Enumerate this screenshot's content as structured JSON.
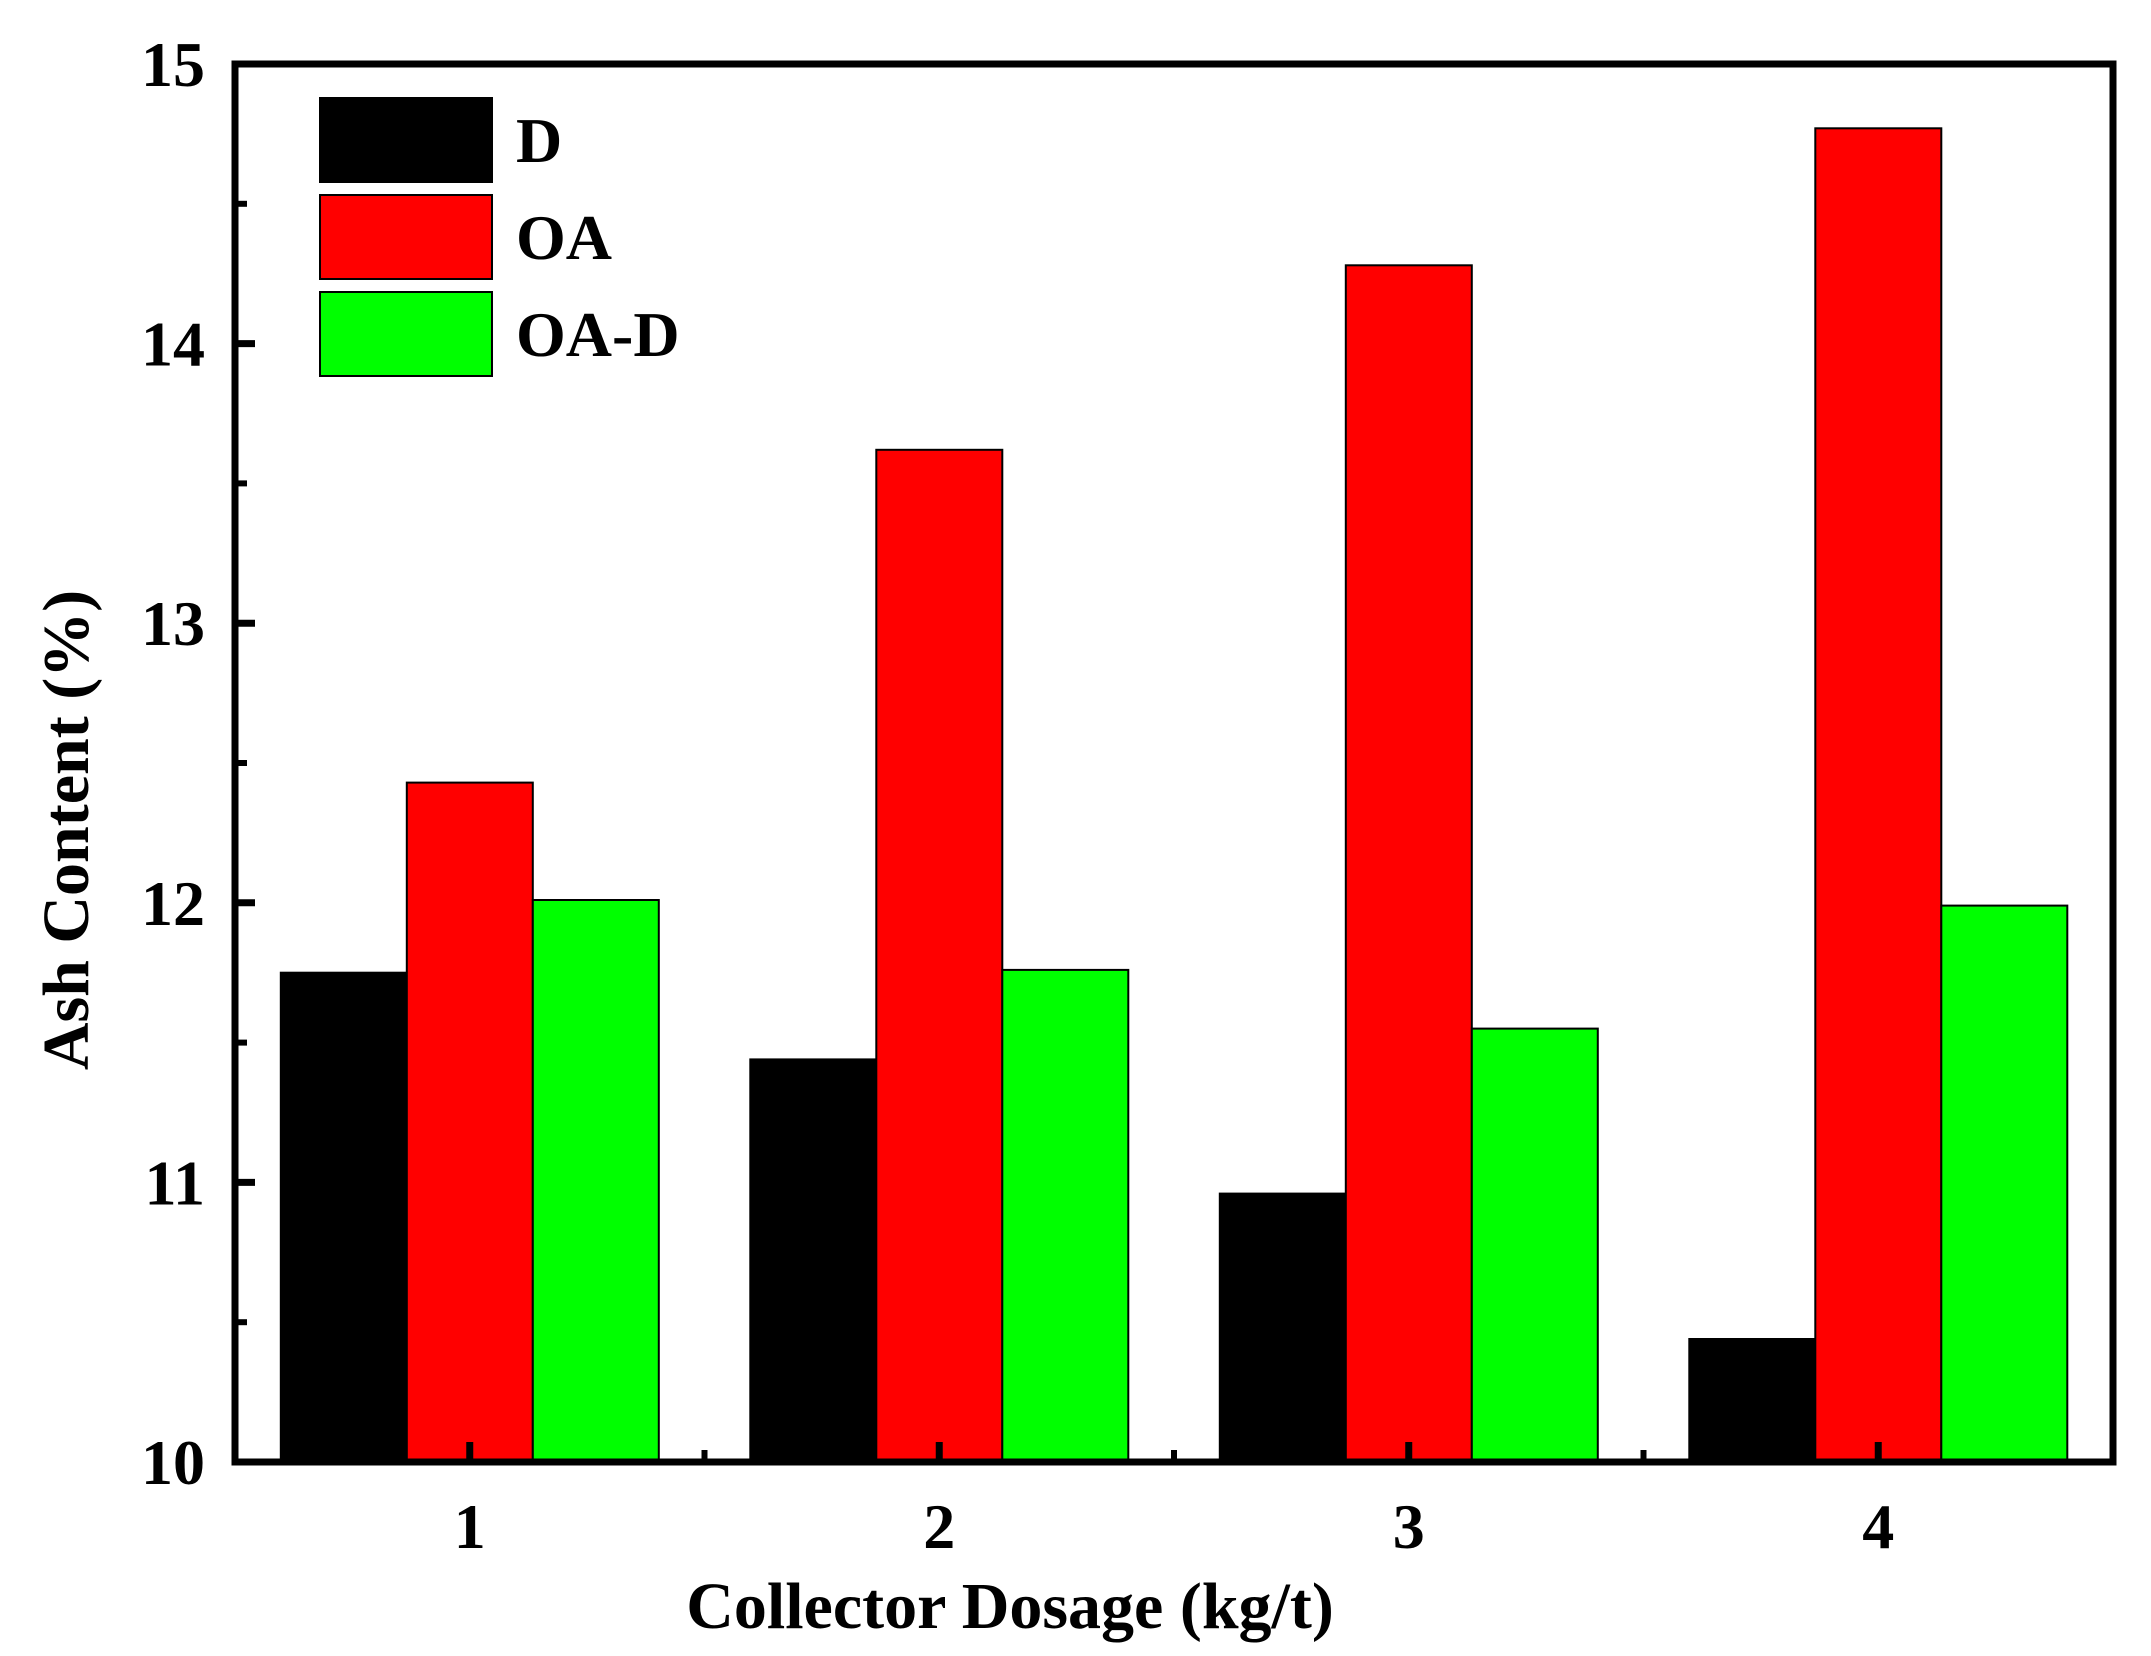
{
  "chart_data": {
    "type": "bar",
    "title": "",
    "xlabel": "Collector Dosage (kg/t)",
    "ylabel": "Ash Content (%)",
    "categories": [
      "1",
      "2",
      "3",
      "4"
    ],
    "series": [
      {
        "name": "D",
        "color": "#000000",
        "values": [
          11.75,
          11.44,
          10.96,
          10.44
        ]
      },
      {
        "name": "OA",
        "color": "#ff0000",
        "values": [
          12.43,
          13.62,
          14.28,
          14.77
        ]
      },
      {
        "name": "OA-D",
        "color": "#00ff00",
        "values": [
          12.01,
          11.76,
          11.55,
          11.99
        ]
      }
    ],
    "ylim": [
      10,
      15
    ],
    "yticks": [
      "10",
      "11",
      "12",
      "13",
      "14",
      "15"
    ],
    "grid": false,
    "legend_position": "top-left"
  }
}
